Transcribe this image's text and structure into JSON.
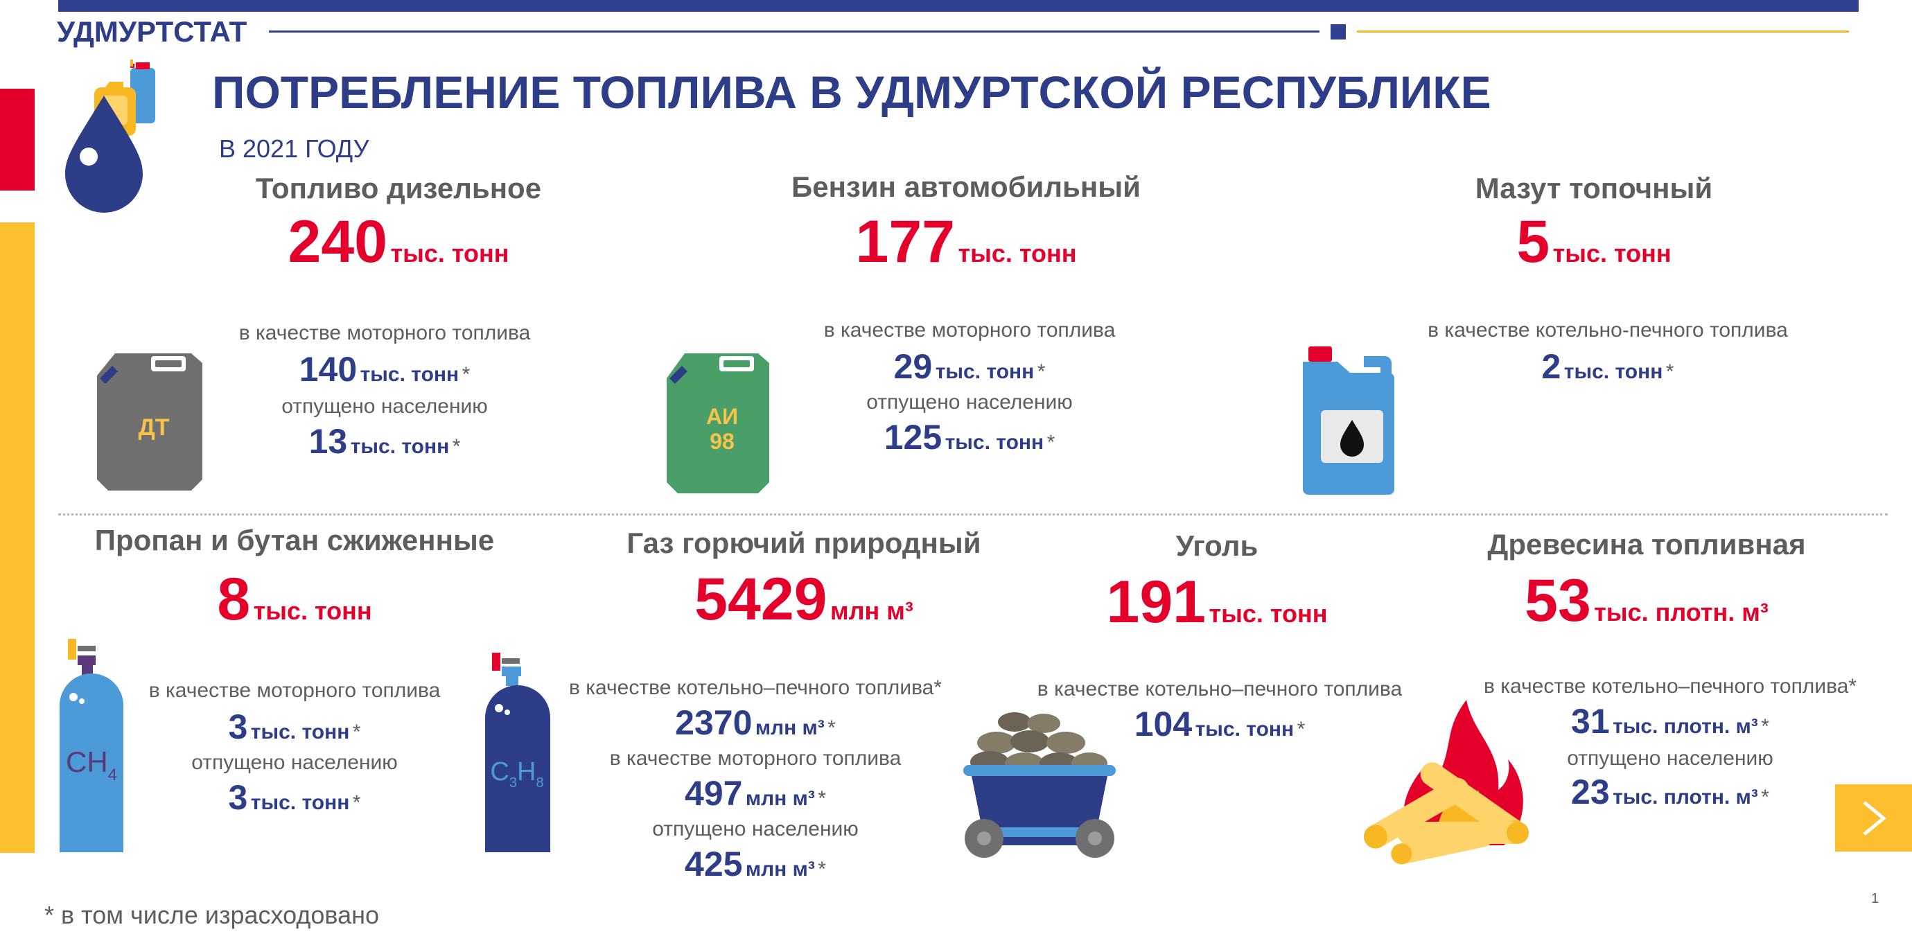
{
  "header": {
    "org": "УДМУРТСТАТ",
    "title": "ПОТРЕБЛЕНИЕ ТОПЛИВА В УДМУРТСКОЙ РЕСПУБЛИКЕ",
    "subtitle": "В 2021 ГОДУ"
  },
  "colors": {
    "navy": "#2e3d87",
    "red": "#e4002b",
    "yellow": "#fcc02e",
    "gray": "#5d5d5d"
  },
  "fuels": {
    "diesel": {
      "name": "Топливо дизельное",
      "total": "240",
      "unit": "тыс. тонн",
      "icon": "diesel-canister-icon",
      "icon_text": "ДТ",
      "rows": [
        {
          "label": "в качестве моторного топлива",
          "value": "140",
          "unit": "тыс. тонн",
          "mark": "*"
        },
        {
          "label": "отпущено населению",
          "value": "13",
          "unit": "тыс. тонн",
          "mark": "*"
        }
      ]
    },
    "gasoline": {
      "name": "Бензин автомобильный",
      "total": "177",
      "unit": "тыс. тонн",
      "icon": "gasoline-canister-icon",
      "icon_text": [
        "АИ",
        "98"
      ],
      "rows": [
        {
          "label": "в качестве моторного топлива",
          "value": "29",
          "unit": "тыс. тонн",
          "mark": "*"
        },
        {
          "label": "отпущено населению",
          "value": "125",
          "unit": "тыс. тонн",
          "mark": "*"
        }
      ]
    },
    "fuel_oil": {
      "name": "Мазут топочный",
      "total": "5",
      "unit": "тыс. тонн",
      "icon": "oil-bottle-icon",
      "rows": [
        {
          "label": "в качестве котельно-печного топлива",
          "value": "2",
          "unit": "тыс. тонн",
          "mark": "*"
        }
      ]
    },
    "propane": {
      "name": "Пропан и бутан сжиженные",
      "total": "8",
      "unit": "тыс. тонн",
      "icon": "gas-cylinder-icon",
      "icon_text": [
        "CH",
        "4"
      ],
      "rows": [
        {
          "label": "в качестве моторного топлива",
          "value": "3",
          "unit": "тыс. тонн",
          "mark": "*"
        },
        {
          "label": "отпущено населению",
          "value": "3",
          "unit": "тыс. тонн",
          "mark": "*"
        }
      ]
    },
    "natural_gas": {
      "name": "Газ горючий природный",
      "total": "5429",
      "unit": "млн м³",
      "icon": "gas-cylinder-icon",
      "icon_text": [
        "C",
        "3",
        "H",
        "8"
      ],
      "rows": [
        {
          "label": "в качестве котельно–печного топлива*",
          "value": "2370",
          "unit": "млн м³",
          "mark": "*"
        },
        {
          "label": "в качестве моторного топлива",
          "value": "497",
          "unit": "млн м³",
          "mark": "*"
        },
        {
          "label": "отпущено населению",
          "value": "425",
          "unit": "млн м³",
          "mark": "*"
        }
      ]
    },
    "coal": {
      "name": "Уголь",
      "total": "191",
      "unit": "тыс. тонн",
      "icon": "coal-cart-icon",
      "rows": [
        {
          "label": "в качестве котельно–печного топлива",
          "value": "104",
          "unit": "тыс. тонн",
          "mark": "*"
        }
      ]
    },
    "wood": {
      "name": "Древесина топливная",
      "total": "53",
      "unit": "тыс. плотн. м³",
      "icon": "firewood-icon",
      "rows": [
        {
          "label": "в качестве котельно–печного топлива*",
          "value": "31",
          "unit": "тыс. плотн. м³",
          "mark": "*"
        },
        {
          "label": "отпущено населению",
          "value": "23",
          "unit": "тыс. плотн. м³",
          "mark": "*"
        }
      ]
    }
  },
  "footnote": "* в том числе израсходовано",
  "page_number": "1",
  "nav": {
    "next_icon": "chevron-right-icon"
  }
}
